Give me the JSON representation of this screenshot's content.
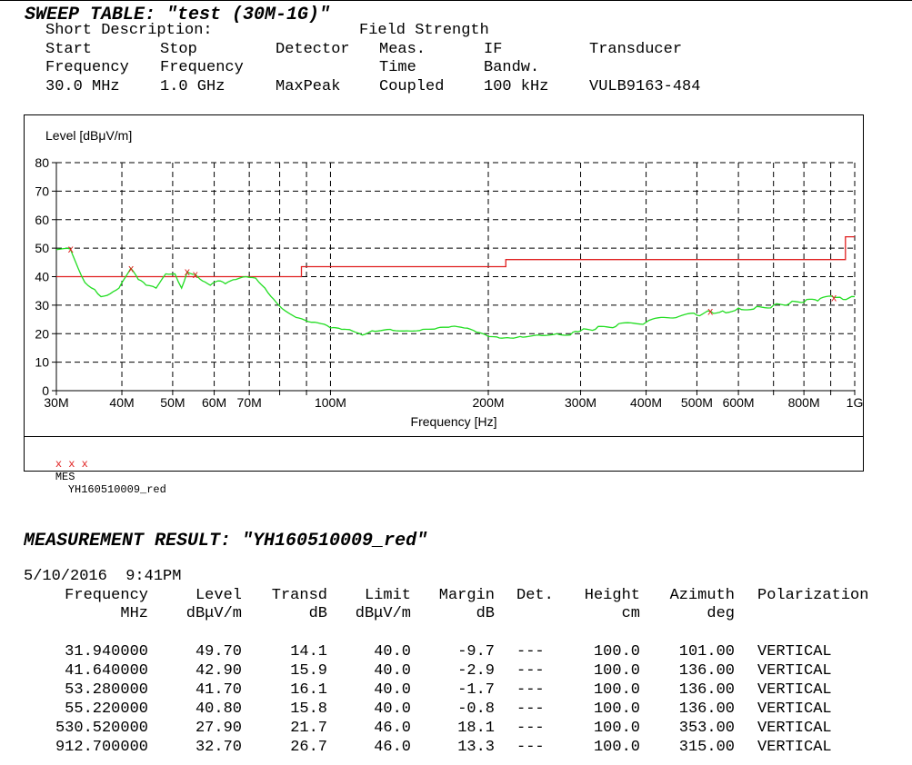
{
  "sweep": {
    "title": "SWEEP TABLE: \"test (30M-1G)\"",
    "short_description_label": "Short Description:",
    "short_description_value": "Field Strength",
    "columns": [
      {
        "line1": "Start",
        "line2": "Frequency",
        "value": "30.0 MHz"
      },
      {
        "line1": "Stop",
        "line2": "Frequency",
        "value": "1.0 GHz"
      },
      {
        "line1": "Detector",
        "line2": "",
        "value": "MaxPeak"
      },
      {
        "line1": "Meas.",
        "line2": "Time",
        "value": "Coupled"
      },
      {
        "line1": "IF",
        "line2": "Bandw.",
        "value": "100 kHz"
      },
      {
        "line1": "Transducer",
        "line2": "",
        "value": "VULB9163-484"
      }
    ]
  },
  "chart_data": {
    "type": "line",
    "ylabel": "Level [dBμV/m]",
    "xlabel": "Frequency [Hz]",
    "x_scale": "log",
    "xlim": [
      30,
      1000
    ],
    "ylim": [
      0,
      80
    ],
    "grid": "dashed",
    "y_ticks": [
      0,
      10,
      20,
      30,
      40,
      50,
      60,
      70,
      80
    ],
    "x_ticks": [
      {
        "value": 30,
        "label": "30M"
      },
      {
        "value": 40,
        "label": "40M"
      },
      {
        "value": 50,
        "label": "50M"
      },
      {
        "value": 60,
        "label": "60M"
      },
      {
        "value": 70,
        "label": "70M"
      },
      {
        "value": 100,
        "label": "100M"
      },
      {
        "value": 200,
        "label": "200M"
      },
      {
        "value": 300,
        "label": "300M"
      },
      {
        "value": 400,
        "label": "400M"
      },
      {
        "value": 500,
        "label": "500M"
      },
      {
        "value": 600,
        "label": "600M"
      },
      {
        "value": 800,
        "label": "800M"
      },
      {
        "value": 1000,
        "label": "1G"
      }
    ],
    "x_grid": [
      30,
      40,
      50,
      60,
      70,
      80,
      90,
      100,
      200,
      300,
      400,
      500,
      600,
      700,
      800,
      900,
      1000
    ],
    "series": [
      {
        "type": "limit",
        "color": "#e02020",
        "points": [
          [
            30,
            40
          ],
          [
            88,
            40
          ],
          [
            88,
            43.5
          ],
          [
            216,
            43.5
          ],
          [
            216,
            46
          ],
          [
            960,
            46
          ],
          [
            960,
            54
          ],
          [
            1000,
            54
          ]
        ]
      },
      {
        "type": "trace",
        "color": "#22dd22",
        "points": [
          [
            30,
            49.5
          ],
          [
            31.9,
            49.7
          ],
          [
            33,
            43
          ],
          [
            34,
            38
          ],
          [
            35.5,
            35.5
          ],
          [
            36.5,
            33
          ],
          [
            38,
            34
          ],
          [
            39.5,
            36
          ],
          [
            41.6,
            42.9
          ],
          [
            43,
            39
          ],
          [
            44.5,
            37
          ],
          [
            46.5,
            36
          ],
          [
            48.5,
            41
          ],
          [
            50.5,
            41
          ],
          [
            52,
            36
          ],
          [
            53.3,
            41.7
          ],
          [
            55.2,
            40.8
          ],
          [
            57,
            38.5
          ],
          [
            59,
            37
          ],
          [
            61,
            38.5
          ],
          [
            63,
            37.5
          ],
          [
            66,
            39
          ],
          [
            69,
            40
          ],
          [
            72,
            39.5
          ],
          [
            75,
            36
          ],
          [
            78,
            32
          ],
          [
            82,
            28
          ],
          [
            87,
            25.5
          ],
          [
            92,
            24
          ],
          [
            96,
            23.5
          ],
          [
            100,
            22
          ],
          [
            105,
            21.5
          ],
          [
            110,
            21
          ],
          [
            115,
            19.5
          ],
          [
            120,
            21
          ],
          [
            130,
            21.5
          ],
          [
            140,
            21
          ],
          [
            150,
            21.5
          ],
          [
            160,
            22
          ],
          [
            170,
            22.5
          ],
          [
            180,
            22
          ],
          [
            190,
            20.5
          ],
          [
            200,
            19
          ],
          [
            210,
            18.5
          ],
          [
            220,
            18.5
          ],
          [
            230,
            19
          ],
          [
            250,
            19.5
          ],
          [
            270,
            20
          ],
          [
            290,
            20.5
          ],
          [
            300,
            21
          ],
          [
            320,
            21.5
          ],
          [
            350,
            22.5
          ],
          [
            400,
            24
          ],
          [
            450,
            25.5
          ],
          [
            500,
            26.5
          ],
          [
            530.5,
            27.9
          ],
          [
            560,
            28
          ],
          [
            600,
            29
          ],
          [
            650,
            29.5
          ],
          [
            700,
            30
          ],
          [
            750,
            30.5
          ],
          [
            800,
            31
          ],
          [
            850,
            31.5
          ],
          [
            912.7,
            32.7
          ],
          [
            950,
            32
          ],
          [
            1000,
            33
          ]
        ]
      }
    ],
    "markers": [
      {
        "x": 31.94,
        "y": 49.7
      },
      {
        "x": 41.64,
        "y": 42.9
      },
      {
        "x": 53.28,
        "y": 41.7
      },
      {
        "x": 55.22,
        "y": 40.8
      },
      {
        "x": 530.52,
        "y": 27.9
      },
      {
        "x": 912.7,
        "y": 32.7
      }
    ],
    "legend": {
      "symbols": "x x x",
      "label": "MES",
      "name": "YH160510009_red",
      "color": "#e02020"
    }
  },
  "result": {
    "title": "MEASUREMENT RESULT: \"YH160510009_red\"",
    "datetime": "5/10/2016  9:41PM",
    "headers": [
      {
        "line1": "Frequency",
        "line2": "MHz"
      },
      {
        "line1": "Level",
        "line2": "dBμV/m"
      },
      {
        "line1": "Transd",
        "line2": "dB"
      },
      {
        "line1": "Limit",
        "line2": "dBμV/m"
      },
      {
        "line1": "Margin",
        "line2": "dB"
      },
      {
        "line1": "Det.",
        "line2": ""
      },
      {
        "line1": "Height",
        "line2": "cm"
      },
      {
        "line1": "Azimuth",
        "line2": "deg"
      },
      {
        "line1": "Polarization",
        "line2": ""
      }
    ],
    "rows": [
      [
        "31.940000",
        "49.70",
        "14.1",
        "40.0",
        "-9.7",
        "---",
        "100.0",
        "101.00",
        "VERTICAL"
      ],
      [
        "41.640000",
        "42.90",
        "15.9",
        "40.0",
        "-2.9",
        "---",
        "100.0",
        "136.00",
        "VERTICAL"
      ],
      [
        "53.280000",
        "41.70",
        "16.1",
        "40.0",
        "-1.7",
        "---",
        "100.0",
        "136.00",
        "VERTICAL"
      ],
      [
        "55.220000",
        "40.80",
        "15.8",
        "40.0",
        "-0.8",
        "---",
        "100.0",
        "136.00",
        "VERTICAL"
      ],
      [
        "530.520000",
        "27.90",
        "21.7",
        "46.0",
        "18.1",
        "---",
        "100.0",
        "353.00",
        "VERTICAL"
      ],
      [
        "912.700000",
        "32.70",
        "26.7",
        "46.0",
        "13.3",
        "---",
        "100.0",
        "315.00",
        "VERTICAL"
      ]
    ]
  }
}
